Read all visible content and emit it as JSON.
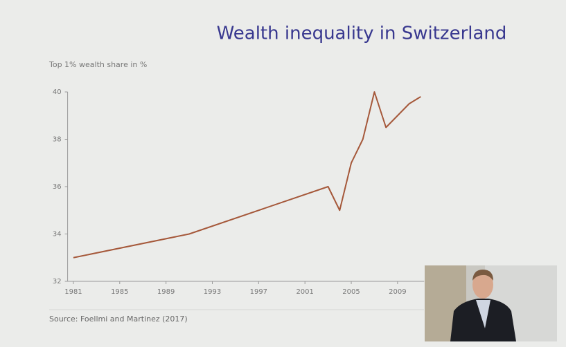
{
  "chart_data": {
    "type": "line",
    "title": "Wealth inequality in Switzerland",
    "y_label": "Top 1% wealth share in %",
    "source": "Source: Foellmi and Martinez (2017)",
    "x": [
      1981,
      1991,
      2003,
      2004,
      2005,
      2006,
      2007,
      2008,
      2010,
      2011
    ],
    "series": [
      {
        "name": "Top 1% wealth share",
        "color": "#a5583a",
        "values": [
          33.0,
          34.0,
          36.0,
          35.0,
          37.0,
          38.0,
          40.0,
          38.5,
          39.5,
          39.8
        ]
      }
    ],
    "xlim": [
      1980.5,
      2011.3
    ],
    "xticks": [
      1981,
      1985,
      1989,
      1993,
      1997,
      2001,
      2005,
      2009
    ],
    "ylim": [
      32,
      40
    ],
    "yticks": [
      32,
      34,
      36,
      38,
      40
    ]
  }
}
